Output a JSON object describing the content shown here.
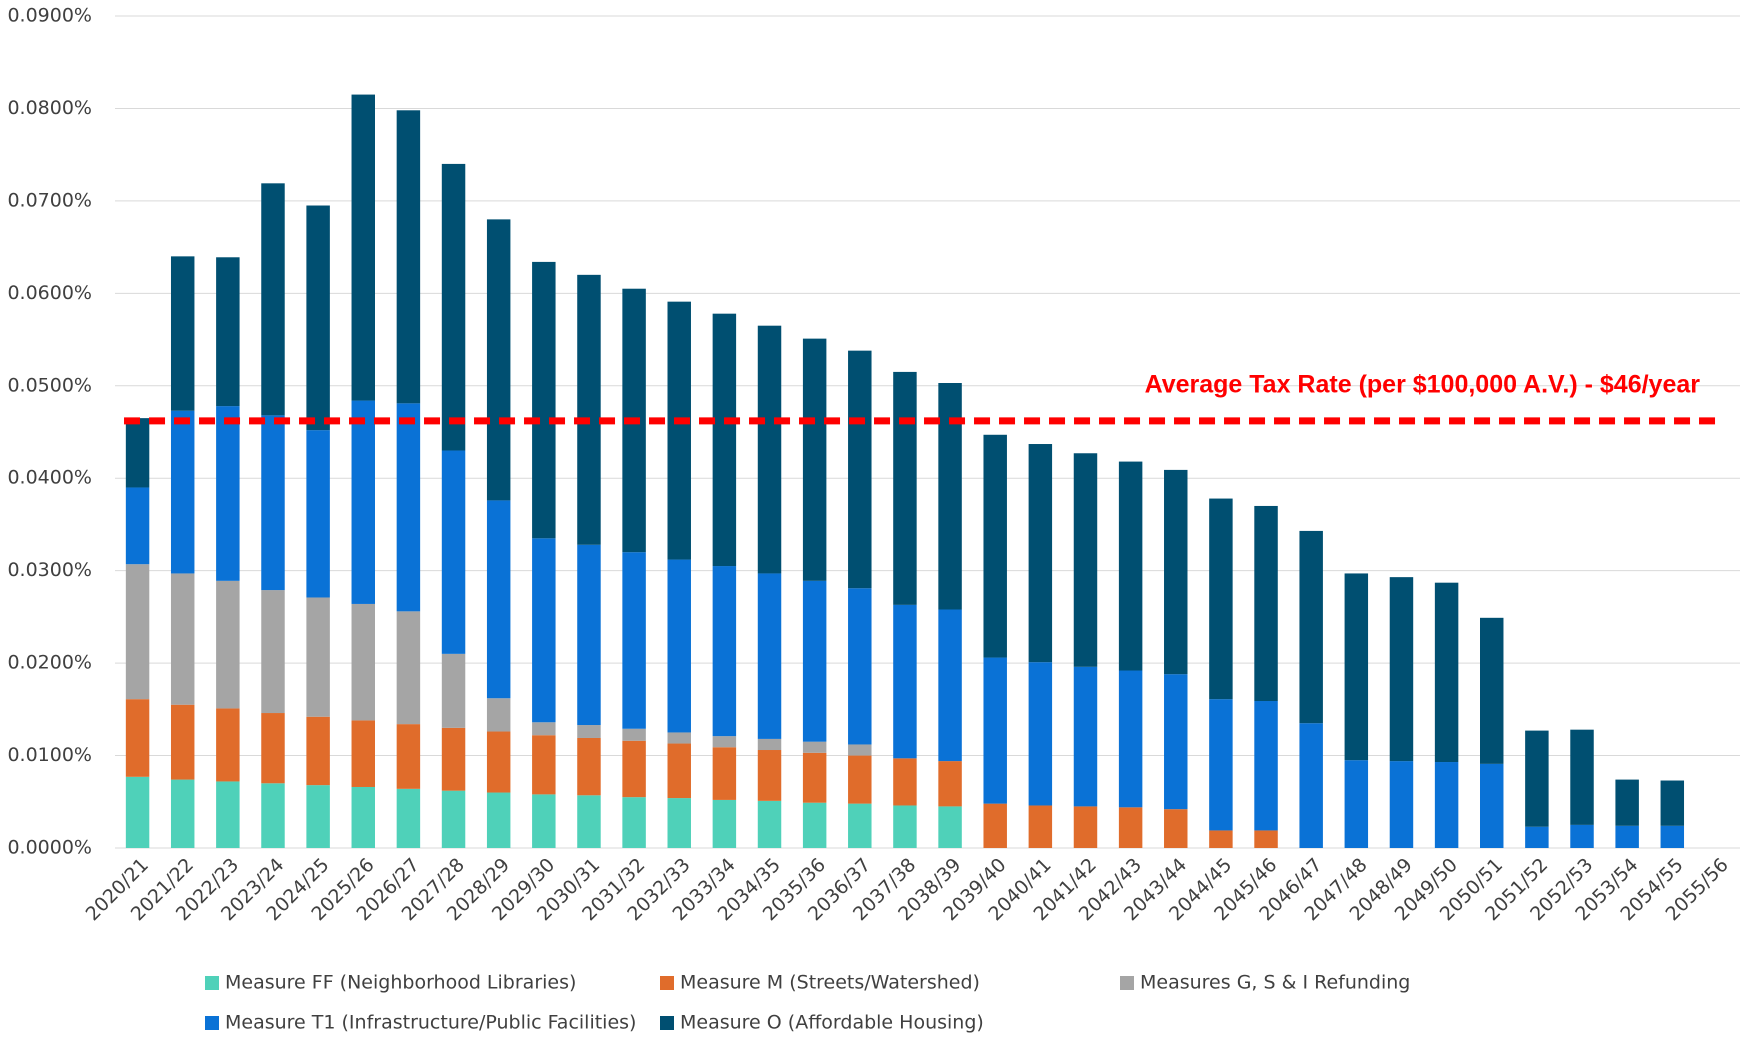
{
  "chart_data": {
    "type": "stacked_bar",
    "categories": [
      "2020/21",
      "2021/22",
      "2022/23",
      "2023/24",
      "2024/25",
      "2025/26",
      "2026/27",
      "2027/28",
      "2028/29",
      "2029/30",
      "2030/31",
      "2031/32",
      "2032/33",
      "2033/34",
      "2034/35",
      "2035/36",
      "2036/37",
      "2037/38",
      "2038/39",
      "2039/40",
      "2040/41",
      "2041/42",
      "2042/43",
      "2043/44",
      "2044/45",
      "2045/46",
      "2046/47",
      "2047/48",
      "2048/49",
      "2049/50",
      "2050/51",
      "2051/52",
      "2052/53",
      "2053/54",
      "2054/55",
      "2055/56"
    ],
    "series": [
      {
        "name": "Measure FF (Neighborhood Libraries)",
        "color": "#4fd1b9",
        "values": [
          0.0077,
          0.0074,
          0.0072,
          0.007,
          0.0068,
          0.0066,
          0.0064,
          0.0062,
          0.006,
          0.0058,
          0.0057,
          0.0055,
          0.0054,
          0.0052,
          0.0051,
          0.0049,
          0.0048,
          0.0046,
          0.0045,
          0,
          0,
          0,
          0,
          0,
          0,
          0,
          0,
          0,
          0,
          0,
          0,
          0,
          0,
          0,
          0,
          null
        ]
      },
      {
        "name": "Measure M (Streets/Watershed)",
        "color": "#e06c2b",
        "values": [
          0.0084,
          0.0081,
          0.0079,
          0.0076,
          0.0074,
          0.0072,
          0.007,
          0.0068,
          0.0066,
          0.0064,
          0.0062,
          0.0061,
          0.0059,
          0.0057,
          0.0055,
          0.0054,
          0.0052,
          0.0051,
          0.0049,
          0.0048,
          0.0046,
          0.0045,
          0.0044,
          0.0042,
          0.0019,
          0.0019,
          0,
          0,
          0,
          0,
          0,
          0,
          0,
          0,
          0,
          null
        ]
      },
      {
        "name": "Measures G, S & I Refunding",
        "color": "#a5a5a5",
        "values": [
          0.0146,
          0.0142,
          0.0138,
          0.0133,
          0.0129,
          0.0126,
          0.0122,
          0.008,
          0.0036,
          0.0014,
          0.0014,
          0.0013,
          0.0012,
          0.0012,
          0.0012,
          0.0012,
          0.0012,
          0,
          0,
          0,
          0,
          0,
          0,
          0,
          0,
          0,
          0,
          0,
          0,
          0,
          0,
          0,
          0,
          0,
          0,
          null
        ]
      },
      {
        "name": "Measure T1 (Infrastructure/Public Facilities)",
        "color": "#0a72d6",
        "values": [
          0.0083,
          0.0176,
          0.0189,
          0.0189,
          0.0181,
          0.022,
          0.0225,
          0.022,
          0.0214,
          0.0199,
          0.0195,
          0.0191,
          0.0187,
          0.0184,
          0.0179,
          0.0174,
          0.0169,
          0.0166,
          0.0164,
          0.0158,
          0.0155,
          0.0151,
          0.0148,
          0.0146,
          0.0142,
          0.014,
          0.0135,
          0.0095,
          0.0094,
          0.0093,
          0.0091,
          0.0023,
          0.0025,
          0.0024,
          0.0024,
          null
        ]
      },
      {
        "name": "Measure O (Affordable Housing)",
        "color": "#004f71",
        "values": [
          0.0075,
          0.0167,
          0.0161,
          0.0251,
          0.0243,
          0.0331,
          0.0317,
          0.031,
          0.0304,
          0.0299,
          0.0292,
          0.0285,
          0.0279,
          0.0273,
          0.0268,
          0.0262,
          0.0257,
          0.0252,
          0.0245,
          0.0241,
          0.0236,
          0.0231,
          0.0226,
          0.0221,
          0.0217,
          0.0211,
          0.0208,
          0.0202,
          0.0199,
          0.0194,
          0.0158,
          0.0104,
          0.0103,
          0.005,
          0.0049,
          null
        ]
      }
    ],
    "ylim": [
      0,
      0.09
    ],
    "yticks": [
      {
        "value": 0,
        "label": "0.0000%"
      },
      {
        "value": 0.01,
        "label": "0.0100%"
      },
      {
        "value": 0.02,
        "label": "0.0200%"
      },
      {
        "value": 0.03,
        "label": "0.0300%"
      },
      {
        "value": 0.04,
        "label": "0.0400%"
      },
      {
        "value": 0.05,
        "label": "0.0500%"
      },
      {
        "value": 0.06,
        "label": "0.0600%"
      },
      {
        "value": 0.07,
        "label": "0.0700%"
      },
      {
        "value": 0.08,
        "label": "0.0800%"
      },
      {
        "value": 0.09,
        "label": "0.0900%"
      }
    ],
    "grid": true,
    "reference_line": {
      "value": 0.0462,
      "label": "Average Tax Rate (per $100,000 A.V.) - $46/year",
      "color": "#ff0000"
    }
  }
}
